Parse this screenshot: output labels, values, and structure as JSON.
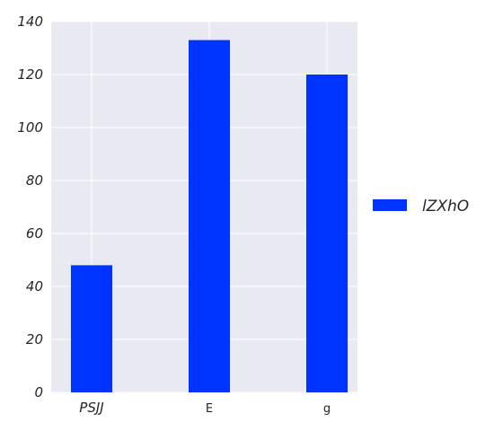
{
  "chart_data": {
    "type": "bar",
    "categories": [
      "PSJJ",
      "E",
      "g"
    ],
    "series": [
      {
        "name": "lZXhO",
        "values": [
          48,
          133,
          120
        ]
      }
    ],
    "title": "",
    "xlabel": "",
    "ylabel": "",
    "ylim": [
      0,
      140
    ],
    "yticks": [
      0,
      20,
      40,
      60,
      80,
      100,
      120,
      140
    ],
    "grid": true,
    "legend_position": "right",
    "colors": {
      "bar": "#0033ff",
      "plot_background": "#e8e9f1",
      "grid": "#ffffff",
      "text": "#262626"
    }
  }
}
